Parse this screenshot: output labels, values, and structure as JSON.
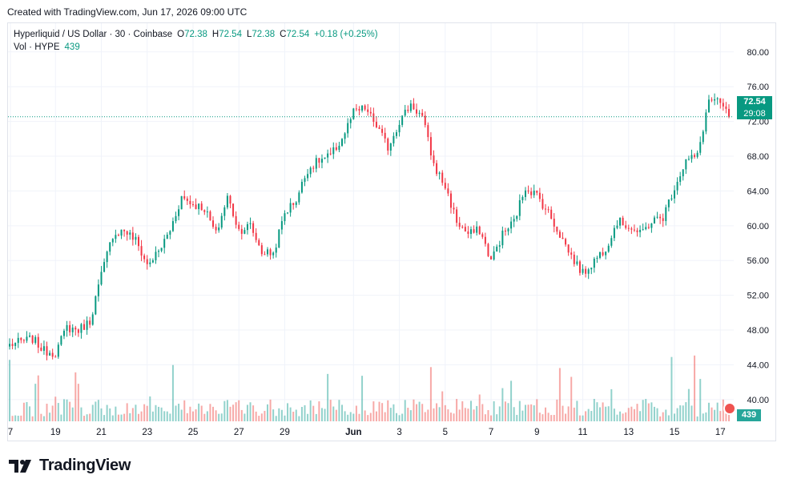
{
  "header": {
    "created_with": "Created with TradingView.com, Jun 17, 2026 09:00 UTC"
  },
  "legend": {
    "title": "Hyperliquid / US Dollar · 30 · Coinbase",
    "o_label": "O",
    "o_value": "72.38",
    "h_label": "H",
    "h_value": "72.54",
    "l_label": "L",
    "l_value": "72.38",
    "c_label": "C",
    "c_value": "72.54",
    "change": "+0.18 (+0.25%)",
    "vol_label": "Vol · HYPE",
    "vol_value": "439"
  },
  "price_axis": {
    "current_price": "72.54",
    "countdown": "29:08",
    "volume_badge": "439"
  },
  "brand": {
    "name": "TradingView",
    "icon": "tradingview-logo-icon"
  },
  "colors": {
    "up": "#089981",
    "down": "#f23645",
    "up_volume": "#26a69a",
    "down_volume": "#ef5350",
    "grid": "#f0f3fa"
  },
  "chart_data": {
    "type": "candlestick",
    "symbol": "HYPE/USD",
    "interval": "30",
    "exchange": "Coinbase",
    "y_ticks": [
      "80.00",
      "76.00",
      "72.00",
      "68.00",
      "64.00",
      "60.00",
      "56.00",
      "52.00",
      "48.00",
      "44.00",
      "40.00"
    ],
    "ylim": [
      37.5,
      83.3
    ],
    "x_ticks": [
      "7",
      "19",
      "21",
      "23",
      "25",
      "27",
      "29",
      "Jun",
      "3",
      "5",
      "7",
      "9",
      "11",
      "13",
      "15",
      "17"
    ],
    "price_path": [
      [
        "May 17",
        46.3
      ],
      [
        "May 18",
        47.0
      ],
      [
        "May 18 12:00",
        45.6
      ],
      [
        "May 19",
        45.4
      ],
      [
        "May 19 12:00",
        48.3
      ],
      [
        "May 20",
        48.0
      ],
      [
        "May 20 12:00",
        49.0
      ],
      [
        "May 21",
        54.3
      ],
      [
        "May 21 12:00",
        59.0
      ],
      [
        "May 22",
        59.5
      ],
      [
        "May 22 12:00",
        58.3
      ],
      [
        "May 23",
        55.5
      ],
      [
        "May 23 12:00",
        57.0
      ],
      [
        "May 24",
        59.5
      ],
      [
        "May 24 12:00",
        63.3
      ],
      [
        "May 25",
        62.5
      ],
      [
        "May 25 12:00",
        62.0
      ],
      [
        "May 26",
        59.0
      ],
      [
        "May 26 12:00",
        63.3
      ],
      [
        "May 27",
        59.5
      ],
      [
        "May 27 12:00",
        60.0
      ],
      [
        "May 28",
        57.0
      ],
      [
        "May 28 12:00",
        56.8
      ],
      [
        "May 29",
        61.5
      ],
      [
        "May 29 12:00",
        63.0
      ],
      [
        "May 30",
        66.5
      ],
      [
        "May 30 12:00",
        67.5
      ],
      [
        "May 31",
        68.0
      ],
      [
        "May 31 12:00",
        70.0
      ],
      [
        "Jun 1",
        73.0
      ],
      [
        "Jun 1 12:00",
        73.5
      ],
      [
        "Jun 2",
        71.5
      ],
      [
        "Jun 2 12:00",
        69.0
      ],
      [
        "Jun 3",
        72.0
      ],
      [
        "Jun 3 12:00",
        74.0
      ],
      [
        "Jun 4",
        72.5
      ],
      [
        "Jun 4 12:00",
        67.0
      ],
      [
        "Jun 5",
        64.5
      ],
      [
        "Jun 5 12:00",
        60.5
      ],
      [
        "Jun 6",
        59.0
      ],
      [
        "Jun 6 12:00",
        59.5
      ],
      [
        "Jun 7",
        56.0
      ],
      [
        "Jun 7 12:00",
        59.0
      ],
      [
        "Jun 8",
        60.5
      ],
      [
        "Jun 8 12:00",
        64.5
      ],
      [
        "Jun 9",
        63.5
      ],
      [
        "Jun 9 12:00",
        61.5
      ],
      [
        "Jun 10",
        59.0
      ],
      [
        "Jun 10 12:00",
        56.5
      ],
      [
        "Jun 11",
        54.5
      ],
      [
        "Jun 11 12:00",
        56.0
      ],
      [
        "Jun 12",
        57.5
      ],
      [
        "Jun 12 12:00",
        60.5
      ],
      [
        "Jun 13",
        60.0
      ],
      [
        "Jun 13 12:00",
        59.0
      ],
      [
        "Jun 14",
        60.5
      ],
      [
        "Jun 14 12:00",
        61.0
      ],
      [
        "Jun 15",
        64.5
      ],
      [
        "Jun 15 12:00",
        67.5
      ],
      [
        "Jun 16",
        68.0
      ],
      [
        "Jun 16 12:00",
        74.5
      ],
      [
        "Jun 17",
        74.0
      ],
      [
        "Jun 17 09:00",
        72.54
      ]
    ]
  }
}
